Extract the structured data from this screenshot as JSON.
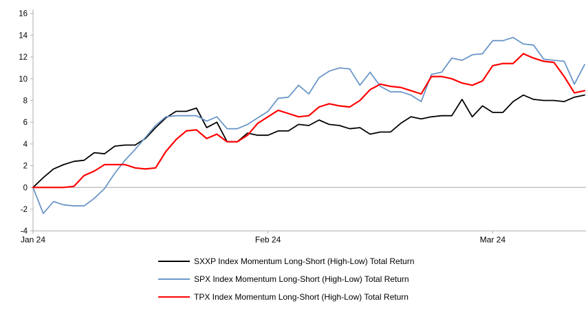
{
  "chart_data": {
    "type": "line",
    "title": "",
    "xlabel": "",
    "ylabel": "",
    "ylim": [
      -4,
      16
    ],
    "ytick_step": 2,
    "grid": "zero-line-only",
    "legend_position": "bottom",
    "x_tick_labels": [
      {
        "label": "Jan 24",
        "day_index": 0
      },
      {
        "label": "Feb 24",
        "day_index": 23
      },
      {
        "label": "Mar 24",
        "day_index": 45
      }
    ],
    "axis_color": "#ADADAD",
    "zero_line_color": "#A6A6A6",
    "tick_text_color": "#000000",
    "series": [
      {
        "name": "SXXP Index Momentum Long-Short (High-Low) Total Return",
        "color": "#000000",
        "stroke_width": 1.8,
        "values": [
          0.0,
          0.9,
          1.7,
          2.1,
          2.4,
          2.5,
          3.2,
          3.1,
          3.8,
          3.9,
          3.9,
          4.5,
          5.5,
          6.4,
          7.0,
          7.0,
          7.3,
          5.5,
          6.0,
          4.2,
          4.2,
          5.0,
          4.8,
          4.8,
          5.2,
          5.2,
          5.8,
          5.7,
          6.2,
          5.8,
          5.7,
          5.4,
          5.5,
          4.9,
          5.1,
          5.1,
          5.9,
          6.5,
          6.3,
          6.5,
          6.6,
          6.6,
          8.1,
          6.5,
          7.5,
          6.9,
          6.9,
          7.9,
          8.5,
          8.1,
          8.0,
          8.0,
          7.9,
          8.3,
          8.5
        ]
      },
      {
        "name": "SPX Index Momentum Long-Short (High-Low) Total Return",
        "color": "#6A96C8",
        "stroke_width": 1.8,
        "values": [
          0.0,
          -2.4,
          -1.3,
          -1.6,
          -1.7,
          -1.7,
          -1.0,
          -0.1,
          1.3,
          2.5,
          3.5,
          4.6,
          5.7,
          6.5,
          6.6,
          6.6,
          6.6,
          6.1,
          6.5,
          5.4,
          5.4,
          5.8,
          6.4,
          7.0,
          8.2,
          8.3,
          9.4,
          8.6,
          10.1,
          10.7,
          11.0,
          10.9,
          9.4,
          10.6,
          9.3,
          8.8,
          8.8,
          8.5,
          7.9,
          10.4,
          10.6,
          11.9,
          11.7,
          12.2,
          12.3,
          13.5,
          13.5,
          13.8,
          13.2,
          13.1,
          11.8,
          11.7,
          11.6,
          9.5,
          11.3
        ]
      },
      {
        "name": "TPX Index Momentum Long-Short (High-Low) Total Return",
        "color": "#FF0000",
        "stroke_width": 2.2,
        "values": [
          0.0,
          0.0,
          0.0,
          0.0,
          0.1,
          1.1,
          1.5,
          2.1,
          2.1,
          2.1,
          1.8,
          1.7,
          1.8,
          3.3,
          4.4,
          5.2,
          5.3,
          4.5,
          4.9,
          4.2,
          4.2,
          4.8,
          5.9,
          6.5,
          7.1,
          6.8,
          6.5,
          6.6,
          7.4,
          7.7,
          7.5,
          7.4,
          8.0,
          9.0,
          9.5,
          9.3,
          9.2,
          8.9,
          8.6,
          10.2,
          10.2,
          10.0,
          9.6,
          9.4,
          9.8,
          11.2,
          11.4,
          11.4,
          12.3,
          11.9,
          11.6,
          11.5,
          10.2,
          8.7,
          8.9
        ]
      }
    ]
  },
  "legend": {
    "items": [
      {
        "label": "SXXP Index Momentum Long-Short (High-Low) Total Return"
      },
      {
        "label": "SPX Index Momentum Long-Short (High-Low) Total Return"
      },
      {
        "label": "TPX Index Momentum Long-Short (High-Low) Total Return"
      }
    ]
  }
}
